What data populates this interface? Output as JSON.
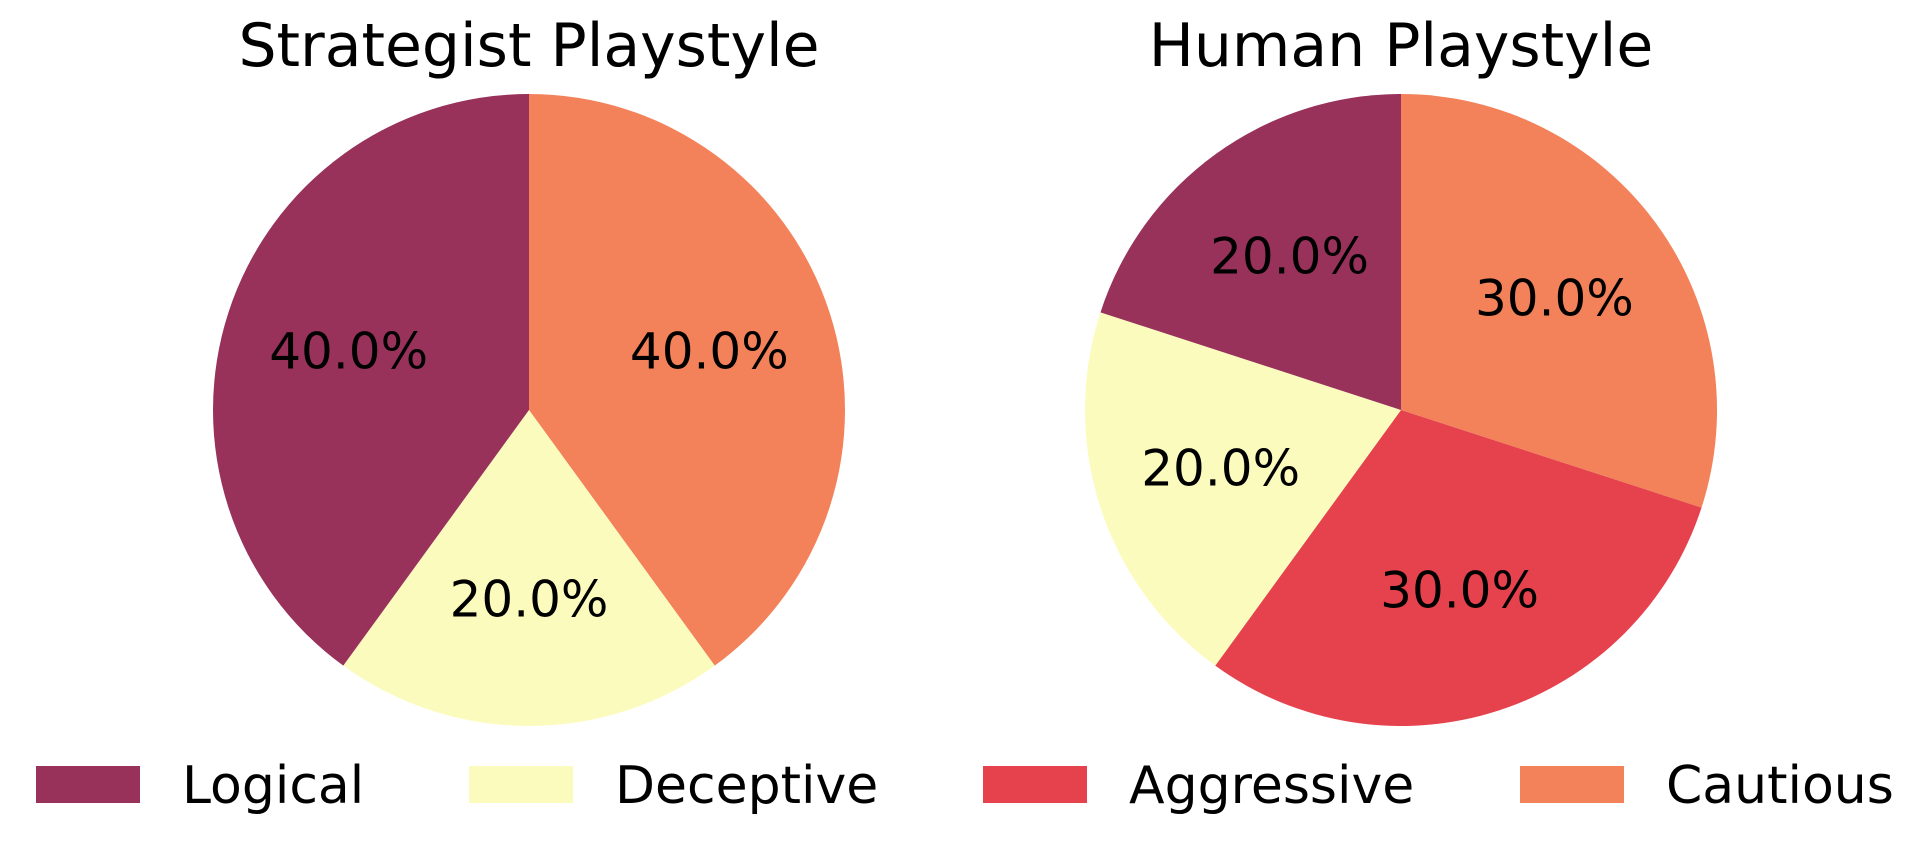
{
  "chart_data": [
    {
      "type": "pie",
      "title": "Strategist Playstyle",
      "slices": [
        {
          "label": "Cautious",
          "value": 40.0,
          "display": "40.0%",
          "color": "#f3825a"
        },
        {
          "label": "Deceptive",
          "value": 20.0,
          "display": "20.0%",
          "color": "#fbfbbd"
        },
        {
          "label": "Logical",
          "value": 40.0,
          "display": "40.0%",
          "color": "#98325b"
        }
      ]
    },
    {
      "type": "pie",
      "title": "Human Playstyle",
      "slices": [
        {
          "label": "Cautious",
          "value": 30.0,
          "display": "30.0%",
          "color": "#f3825a"
        },
        {
          "label": "Aggressive",
          "value": 30.0,
          "display": "30.0%",
          "color": "#e5424d"
        },
        {
          "label": "Deceptive",
          "value": 20.0,
          "display": "20.0%",
          "color": "#fbfbbd"
        },
        {
          "label": "Logical",
          "value": 20.0,
          "display": "20.0%",
          "color": "#98325b"
        }
      ]
    }
  ],
  "legend": {
    "placement": "bottom",
    "items": [
      {
        "label": "Logical",
        "color": "#98325b"
      },
      {
        "label": "Deceptive",
        "color": "#fbfbbd"
      },
      {
        "label": "Aggressive",
        "color": "#e5424d"
      },
      {
        "label": "Cautious",
        "color": "#f3825a"
      }
    ]
  }
}
